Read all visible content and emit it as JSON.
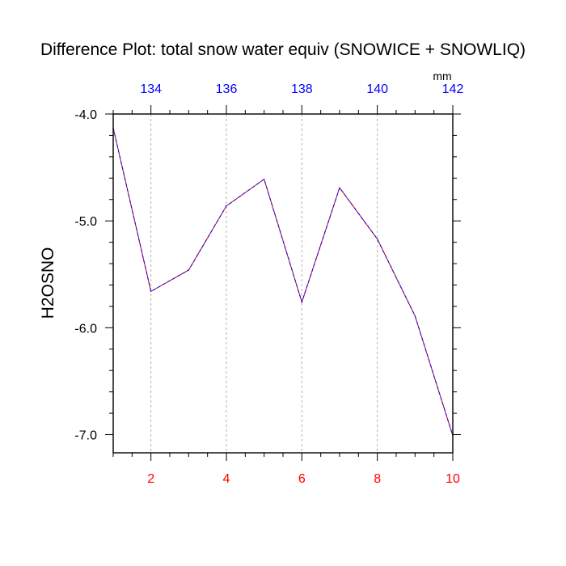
{
  "chart_data": {
    "type": "line",
    "title": "Difference Plot: total snow water equiv (SNOWICE + SNOWLIQ)",
    "ylabel": "H2OSNO",
    "units": "mm",
    "x": [
      1,
      2,
      3,
      4,
      5,
      6,
      7,
      8,
      9,
      10
    ],
    "values": [
      -4.13,
      -5.66,
      -5.46,
      -4.86,
      -4.61,
      -5.76,
      -4.69,
      -5.17,
      -5.89,
      -7.01
    ],
    "xlim": [
      1,
      10
    ],
    "ylim": [
      -7.17,
      -4.0
    ],
    "bottom_ticks": [
      "2",
      "4",
      "6",
      "8",
      "10"
    ],
    "bottom_tick_values": [
      2,
      4,
      6,
      8,
      10
    ],
    "top_ticks": [
      "134",
      "136",
      "138",
      "140",
      "142"
    ],
    "top_tick_values": [
      134,
      136,
      138,
      140,
      142
    ],
    "top_axis_range": [
      133,
      142
    ],
    "y_ticks": [
      "-4.0",
      "-5.0",
      "-6.0",
      "-7.0"
    ],
    "y_tick_values": [
      -4.0,
      -5.0,
      -6.0,
      -7.0
    ],
    "grid": "vertical dashed",
    "line_style": "dashed",
    "colors": {
      "line_dash": "#0000ff",
      "line_gap": "#cc0000",
      "bottom_tick_labels": "#ff0000",
      "top_tick_labels": "#0000ff",
      "grid": "#b0b0b0",
      "axes": "#000000"
    }
  }
}
